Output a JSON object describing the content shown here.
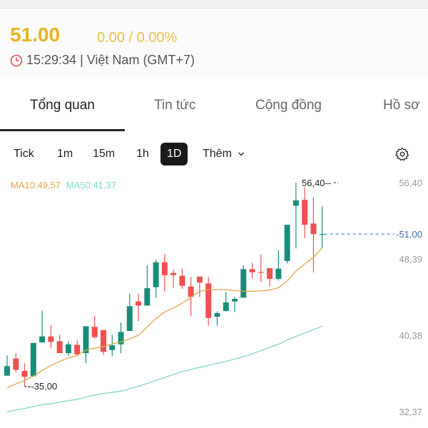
{
  "quote": {
    "price": "51.00",
    "change": "0.00 / 0.00%",
    "time": "15:29:34 | Việt Nam (GMT+7)",
    "icon": "clock-icon"
  },
  "tabs": [
    {
      "label": "Tổng quan",
      "active": true
    },
    {
      "label": "Tin tức"
    },
    {
      "label": "Cộng đồng"
    },
    {
      "label": "Hồ sơ"
    }
  ],
  "timeframes": [
    {
      "label": "Tick"
    },
    {
      "label": "1m"
    },
    {
      "label": "15m"
    },
    {
      "label": "1h"
    },
    {
      "label": "1D",
      "selected": true
    },
    {
      "label": "Thêm"
    }
  ],
  "settings_icon": "gear-icon",
  "colors": {
    "up": "#1a8c7a",
    "down": "#f0504f",
    "ma10": "#e0a84a",
    "ma50": "#86d6cb",
    "price": "#e6b422",
    "last": "#3d6bb3"
  },
  "chart_data": {
    "type": "candlestick",
    "legend": {
      "ma10": "MA10:49,57",
      "ma50": "MA50:41,37"
    },
    "y_ticks": [
      "56,40",
      "48,39",
      "40,38",
      "32,37"
    ],
    "ylim": [
      32.37,
      56.4
    ],
    "max_label": "56,40--",
    "min_label": "--35,00",
    "last_label": "-51,00",
    "last_price": 51.0,
    "candles": [
      [
        36.14,
        37.14,
        38.26,
        36.14
      ],
      [
        37.94,
        36.76,
        38.51,
        36.51
      ],
      [
        36.64,
        36.02,
        37.44,
        35.0
      ],
      [
        36.09,
        39.58,
        39.58,
        36.09
      ],
      [
        39.63,
        40.26,
        42.96,
        39.63
      ],
      [
        40.26,
        39.68,
        41.43,
        39.01
      ],
      [
        39.76,
        38.51,
        40.43,
        38.51
      ],
      [
        38.51,
        39.43,
        39.76,
        38.19
      ],
      [
        39.38,
        38.39,
        39.83,
        38.26
      ],
      [
        38.51,
        41.33,
        41.33,
        37.44
      ],
      [
        41.26,
        40.18,
        42.43,
        40.01
      ],
      [
        40.93,
        38.64,
        40.93,
        38.34
      ],
      [
        38.84,
        39.33,
        40.43,
        38.19
      ],
      [
        39.43,
        40.73,
        41.73,
        38.49
      ],
      [
        40.83,
        43.43,
        44.75,
        40.83
      ],
      [
        43.93,
        43.5,
        44.75,
        41.88
      ],
      [
        43.5,
        45.32,
        47.74,
        43.5
      ],
      [
        45.42,
        48.04,
        48.32,
        44.32
      ],
      [
        48.04,
        46.69,
        48.91,
        45.0
      ],
      [
        46.92,
        46.69,
        47.24,
        45.37
      ],
      [
        46.62,
        45.57,
        47.37,
        45.25
      ],
      [
        45.5,
        44.42,
        46.5,
        42.38
      ],
      [
        46.54,
        45.92,
        46.54,
        44.37
      ],
      [
        45.82,
        42.2,
        46.5,
        41.38
      ],
      [
        42.33,
        42.7,
        42.88,
        41.38
      ],
      [
        42.93,
        43.83,
        44.92,
        42.88
      ],
      [
        43.93,
        44.2,
        44.37,
        42.83
      ],
      [
        44.32,
        47.32,
        47.74,
        44.32
      ],
      [
        47.32,
        46.99,
        47.99,
        46.37
      ],
      [
        47.02,
        46.97,
        48.87,
        45.99
      ],
      [
        47.42,
        46.3,
        47.42,
        45.5
      ],
      [
        46.3,
        47.37,
        49.31,
        46.12
      ],
      [
        48.17,
        51.98,
        51.98,
        47.92
      ],
      [
        53.98,
        54.53,
        56.4,
        49.49
      ],
      [
        54.6,
        51.98,
        55.9,
        50.56
      ],
      [
        52.11,
        51.0,
        54.9,
        46.99
      ],
      [
        51.0,
        51.0,
        53.9,
        49.49
      ]
    ],
    "ma10": [
      34.89,
      35.27,
      35.64,
      36.09,
      36.69,
      37.19,
      37.64,
      38.01,
      38.26,
      38.84,
      39.03,
      39.18,
      39.48,
      39.68,
      40.01,
      40.38,
      41.26,
      42.13,
      42.83,
      43.25,
      43.75,
      44.37,
      45.0,
      45.17,
      45.17,
      45.17,
      45.07,
      45.0,
      45.0,
      45.05,
      45.12,
      45.37,
      46.07,
      47.12,
      47.87,
      48.57,
      49.57
    ],
    "ma50": [
      32.35,
      32.52,
      32.7,
      32.9,
      33.1,
      33.2,
      33.35,
      33.52,
      33.65,
      33.9,
      34.1,
      34.27,
      34.39,
      34.52,
      34.77,
      35.02,
      35.32,
      35.64,
      35.94,
      36.27,
      36.56,
      36.81,
      37.01,
      37.21,
      37.44,
      37.64,
      37.89,
      38.14,
      38.44,
      38.76,
      39.13,
      39.43,
      39.88,
      40.26,
      40.63,
      40.96,
      41.37
    ]
  }
}
